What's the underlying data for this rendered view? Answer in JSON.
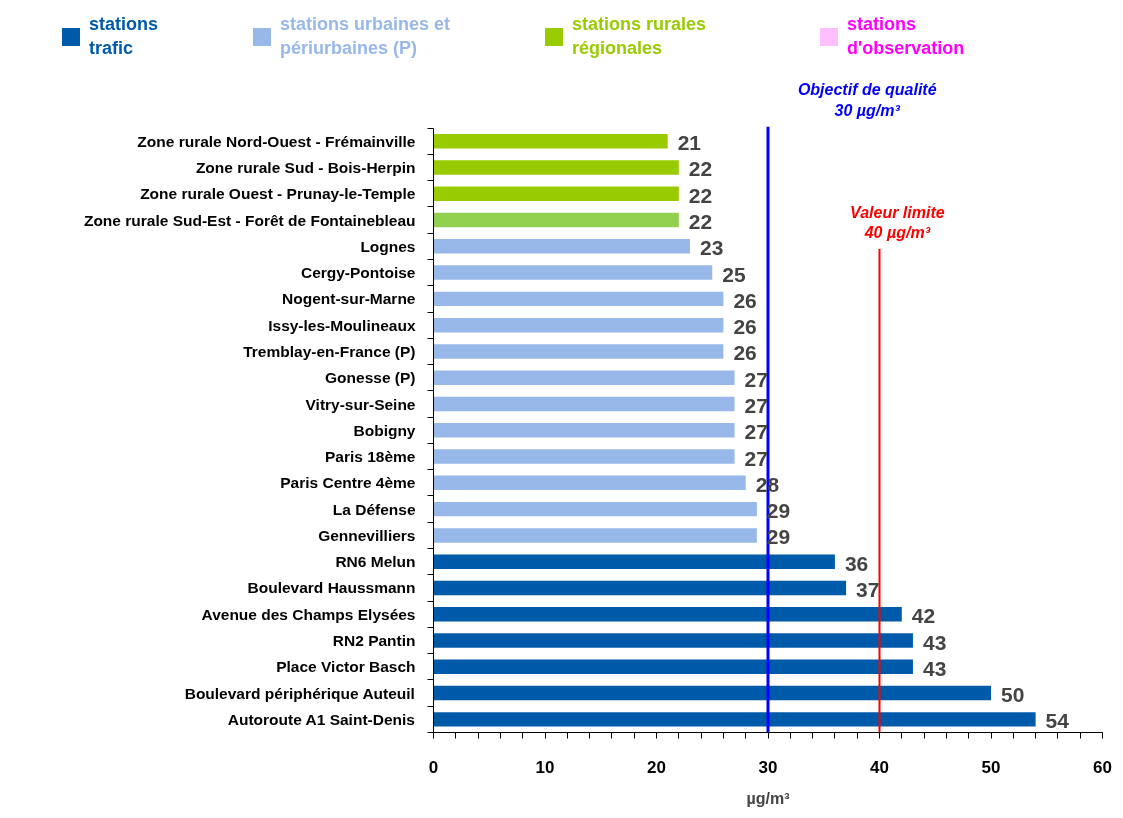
{
  "chart_data": {
    "type": "bar",
    "orientation": "horizontal",
    "categories": [
      "Zone rurale Nord-Ouest - Frémainville",
      "Zone rurale Sud - Bois-Herpin",
      "Zone rurale Ouest - Prunay-le-Temple",
      "Zone rurale Sud-Est - Forêt de Fontainebleau",
      "Lognes",
      "Cergy-Pontoise",
      "Nogent-sur-Marne",
      "Issy-les-Moulineaux",
      "Tremblay-en-France (P)",
      "Gonesse (P)",
      "Vitry-sur-Seine",
      "Bobigny",
      "Paris 18ème",
      "Paris Centre 4ème",
      "La Défense",
      "Gennevilliers",
      "RN6 Melun",
      "Boulevard Haussmann",
      "Avenue des Champs Elysées",
      "RN2 Pantin",
      "Place Victor Basch",
      "Boulevard périphérique Auteuil",
      "Autoroute A1 Saint-Denis"
    ],
    "series": [
      {
        "name": "stations trafic",
        "color": "#005aaa",
        "values": [
          null,
          null,
          null,
          null,
          null,
          null,
          null,
          null,
          null,
          null,
          null,
          null,
          null,
          null,
          null,
          null,
          36,
          37,
          42,
          43,
          43,
          50,
          54
        ]
      },
      {
        "name": "stations urbaines et périurbaines (P)",
        "color": "#99b8ea",
        "values": [
          null,
          null,
          null,
          null,
          23,
          25,
          26,
          26,
          26,
          27,
          27,
          27,
          27,
          28,
          29,
          29,
          null,
          null,
          null,
          null,
          null,
          null,
          null
        ]
      },
      {
        "name": "stations rurales régionales",
        "color": "#99cc00",
        "colors": [
          "#99cc00",
          "#99cc00",
          "#99cc00",
          "#92d050",
          null,
          null,
          null,
          null,
          null,
          null,
          null,
          null,
          null,
          null,
          null,
          null,
          null,
          null,
          null,
          null,
          null,
          null,
          null
        ],
        "values": [
          21,
          22,
          22,
          22,
          null,
          null,
          null,
          null,
          null,
          null,
          null,
          null,
          null,
          null,
          null,
          null,
          null,
          null,
          null,
          null,
          null,
          null,
          null
        ]
      },
      {
        "name": "stations d'observation",
        "color": "#ffbfff",
        "values": [
          null,
          null,
          null,
          null,
          null,
          null,
          null,
          null,
          null,
          null,
          null,
          null,
          null,
          null,
          null,
          null,
          null,
          null,
          null,
          null,
          null,
          null,
          null
        ]
      }
    ],
    "xlim": [
      0,
      60
    ],
    "xticks": [
      0,
      {
        "value": 2,
        "label": null
      },
      {
        "value": 4,
        "label": null
      },
      {
        "value": 6,
        "label": null
      },
      {
        "value": 8,
        "label": null
      },
      10,
      {
        "value": 12,
        "label": null
      },
      {
        "value": 14,
        "label": null
      },
      {
        "value": 16,
        "label": null
      },
      {
        "value": 18,
        "label": null
      },
      20,
      {
        "value": 22,
        "label": null
      },
      {
        "value": 24,
        "label": null
      },
      {
        "value": 26,
        "label": null
      },
      {
        "value": 28,
        "label": null
      },
      30,
      {
        "value": 32,
        "label": null
      },
      {
        "value": 34,
        "label": null
      },
      {
        "value": 36,
        "label": null
      },
      {
        "value": 38,
        "label": null
      },
      40,
      {
        "value": 42,
        "label": null
      },
      {
        "value": 44,
        "label": null
      },
      {
        "value": 46,
        "label": null
      },
      {
        "value": 48,
        "label": null
      },
      50,
      {
        "value": 52,
        "label": null
      },
      {
        "value": 54,
        "label": null
      },
      {
        "value": 56,
        "label": null
      },
      {
        "value": 58,
        "label": null
      },
      60
    ],
    "xlabel": "µg/m³",
    "data_labels": true,
    "grid": false,
    "legend": "top",
    "ref_lines": [
      {
        "axis": "x",
        "value": 30,
        "label": "Objectif de qualité\n30 µg/m³",
        "color": "#0000ff"
      },
      {
        "axis": "x",
        "value": 40,
        "label": "Valeur limite\n40 µg/m³",
        "color": "#ff0000"
      }
    ]
  }
}
